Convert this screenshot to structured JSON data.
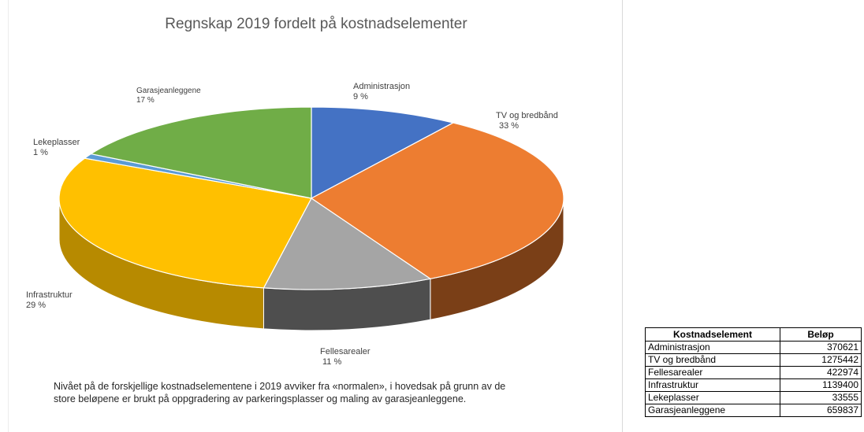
{
  "chart_data": {
    "type": "pie",
    "title": "Regnskap 2019 fordelt på kostnadselementer",
    "slices": [
      {
        "name": "Administrasjon",
        "pct_label": "9 %",
        "value": 370621,
        "color": "#4472c4",
        "side": "#2f4f8a"
      },
      {
        "name": "TV og bredbånd",
        "pct_label": "33 %",
        "value": 1275442,
        "color": "#ed7d31",
        "side": "#7a3f17"
      },
      {
        "name": "Fellesarealer",
        "pct_label": "11 %",
        "value": 422974,
        "color": "#a5a5a5",
        "side": "#4e4e4e"
      },
      {
        "name": "Infrastruktur",
        "pct_label": "29 %",
        "value": 1139400,
        "color": "#ffc000",
        "side": "#b78a00"
      },
      {
        "name": "Lekeplasser",
        "pct_label": "1 %",
        "value": 33555,
        "color": "#5b9bd5",
        "side": "#3a6d99"
      },
      {
        "name": "Garasjeanleggene",
        "pct_label": "17 %",
        "value": 659837,
        "color": "#70ad47",
        "side": "#4c7a30"
      }
    ],
    "legend": "data labels"
  },
  "note": {
    "line1": "Nivået på de forskjellige kostnadselementene i 2019 avviker fra «normalen», i hovedsak på grunn av de",
    "line2": "store beløpene er brukt på oppgradering av parkeringsplasser og maling av garasjeanleggene."
  },
  "table": {
    "headers": [
      "Kostnadselement",
      "Beløp"
    ],
    "rows": [
      [
        "Administrasjon",
        "370621"
      ],
      [
        "TV og bredbånd",
        "1275442"
      ],
      [
        "Fellesarealer",
        "422974"
      ],
      [
        "Infrastruktur",
        "1139400"
      ],
      [
        "Lekeplasser",
        "33555"
      ],
      [
        "Garasjeanleggene",
        "659837"
      ]
    ]
  }
}
